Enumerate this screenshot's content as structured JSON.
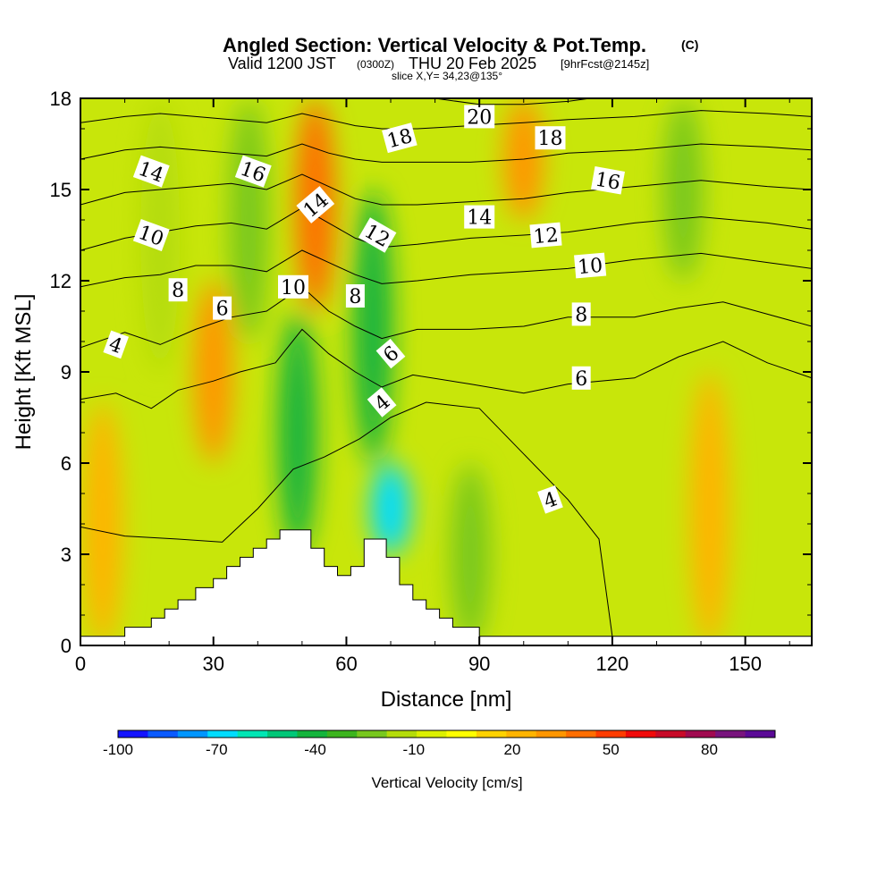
{
  "header": {
    "title": "Angled Section: Vertical Velocity & Pot.Temp.",
    "title_tag": "(C)",
    "valid_prefix": "Valid 1200 JST",
    "valid_utc": "(0300Z)",
    "valid_date": "THU 20 Feb 2025",
    "forecast": "[9hrFcst@2145z]",
    "slice": "slice X,Y= 34,23@135°"
  },
  "colorbar": {
    "label": "Vertical Velocity [cm/s]",
    "tick_labels": [
      "-100",
      "-70",
      "-40",
      "-10",
      "20",
      "50",
      "80"
    ],
    "colors": [
      "#1414ff",
      "#0a5aff",
      "#0096ff",
      "#00dcff",
      "#00e6b4",
      "#00c878",
      "#14b43c",
      "#3cb41e",
      "#78c81e",
      "#b4dc0a",
      "#dcf000",
      "#ffff00",
      "#ffd200",
      "#ffb400",
      "#ff9600",
      "#ff6e00",
      "#ff3c00",
      "#f00a0a",
      "#c80a28",
      "#a00a50",
      "#78147d",
      "#5a0a96"
    ],
    "range": [
      -100,
      100
    ]
  },
  "chart_data": {
    "type": "heatmap",
    "title": "Angled Section: Vertical Velocity & Pot.Temp.",
    "xlabel": "Distance [nm]",
    "ylabel": "Height [Kft MSL]",
    "xlim": [
      0,
      165
    ],
    "ylim": [
      0,
      18
    ],
    "x_ticks": [
      0,
      30,
      60,
      90,
      120,
      150
    ],
    "y_ticks": [
      0,
      3,
      6,
      9,
      12,
      15,
      18
    ],
    "filled_field": "Vertical Velocity [cm/s]",
    "vertical_velocity_features": [
      {
        "x": 5,
        "z_range": [
          0,
          8
        ],
        "value": 25
      },
      {
        "x": 18,
        "z_range": [
          9,
          18
        ],
        "value": -15
      },
      {
        "x": 30,
        "z_range": [
          6,
          12
        ],
        "value": 30
      },
      {
        "x": 38,
        "z_range": [
          10,
          18
        ],
        "value": -20
      },
      {
        "x": 49,
        "z_range": [
          3,
          11
        ],
        "value": -40
      },
      {
        "x": 53,
        "z_range": [
          11,
          18
        ],
        "value": 45
      },
      {
        "x": 70,
        "z_range": [
          3,
          6
        ],
        "value": -65
      },
      {
        "x": 66,
        "z_range": [
          6,
          15
        ],
        "value": -40
      },
      {
        "x": 88,
        "z_range": [
          0,
          6
        ],
        "value": -25
      },
      {
        "x": 100,
        "z_range": [
          14,
          18
        ],
        "value": 35
      },
      {
        "x": 142,
        "z_range": [
          0,
          9
        ],
        "value": 25
      },
      {
        "x": 136,
        "z_range": [
          12,
          18
        ],
        "value": -20
      }
    ],
    "terrain": [
      [
        0,
        0.3
      ],
      [
        10,
        0.3
      ],
      [
        10,
        0.6
      ],
      [
        16,
        0.6
      ],
      [
        16,
        0.9
      ],
      [
        19,
        0.9
      ],
      [
        19,
        1.2
      ],
      [
        22,
        1.2
      ],
      [
        22,
        1.5
      ],
      [
        26,
        1.5
      ],
      [
        26,
        1.9
      ],
      [
        30,
        1.9
      ],
      [
        30,
        2.2
      ],
      [
        33,
        2.2
      ],
      [
        33,
        2.6
      ],
      [
        36,
        2.6
      ],
      [
        36,
        2.9
      ],
      [
        39,
        2.9
      ],
      [
        39,
        3.2
      ],
      [
        42,
        3.2
      ],
      [
        42,
        3.5
      ],
      [
        45,
        3.5
      ],
      [
        45,
        3.8
      ],
      [
        52,
        3.8
      ],
      [
        52,
        3.2
      ],
      [
        55,
        3.2
      ],
      [
        55,
        2.6
      ],
      [
        58,
        2.6
      ],
      [
        58,
        2.3
      ],
      [
        61,
        2.3
      ],
      [
        61,
        2.6
      ],
      [
        64,
        2.6
      ],
      [
        64,
        3.5
      ],
      [
        69,
        3.5
      ],
      [
        69,
        2.9
      ],
      [
        72,
        2.9
      ],
      [
        72,
        2.0
      ],
      [
        75,
        2.0
      ],
      [
        75,
        1.5
      ],
      [
        78,
        1.5
      ],
      [
        78,
        1.2
      ],
      [
        81,
        1.2
      ],
      [
        81,
        0.9
      ],
      [
        84,
        0.9
      ],
      [
        84,
        0.6
      ],
      [
        90,
        0.6
      ],
      [
        90,
        0.3
      ],
      [
        165,
        0.3
      ],
      [
        165,
        0
      ],
      [
        0,
        0
      ]
    ],
    "theta_contours": [
      {
        "value": 4,
        "points": [
          [
            0,
            3.9
          ],
          [
            10,
            3.6
          ],
          [
            22,
            3.5
          ],
          [
            32,
            3.4
          ],
          [
            40,
            4.5
          ],
          [
            48,
            5.8
          ],
          [
            55,
            6.2
          ],
          [
            63,
            6.8
          ],
          [
            70,
            7.5
          ],
          [
            78,
            8.0
          ],
          [
            90,
            7.8
          ],
          [
            100,
            6.3
          ],
          [
            110,
            4.8
          ],
          [
            117,
            3.5
          ],
          [
            120,
            0.3
          ]
        ]
      },
      {
        "value": 6,
        "points": [
          [
            0,
            8.1
          ],
          [
            8,
            8.3
          ],
          [
            16,
            7.8
          ],
          [
            22,
            8.4
          ],
          [
            30,
            8.7
          ],
          [
            36,
            9.0
          ],
          [
            44,
            9.3
          ],
          [
            50,
            10.4
          ],
          [
            56,
            9.6
          ],
          [
            62,
            9.0
          ],
          [
            68,
            8.5
          ],
          [
            75,
            8.9
          ],
          [
            88,
            8.6
          ],
          [
            100,
            8.3
          ],
          [
            110,
            8.6
          ],
          [
            125,
            8.8
          ],
          [
            135,
            9.5
          ],
          [
            145,
            10.0
          ],
          [
            155,
            9.3
          ],
          [
            165,
            8.8
          ]
        ]
      },
      {
        "value": 8,
        "points": [
          [
            0,
            9.8
          ],
          [
            10,
            10.3
          ],
          [
            18,
            9.9
          ],
          [
            26,
            10.4
          ],
          [
            34,
            10.8
          ],
          [
            42,
            11.0
          ],
          [
            50,
            11.8
          ],
          [
            56,
            11.0
          ],
          [
            62,
            10.5
          ],
          [
            68,
            10.1
          ],
          [
            76,
            10.4
          ],
          [
            88,
            10.4
          ],
          [
            100,
            10.5
          ],
          [
            110,
            10.8
          ],
          [
            125,
            10.8
          ],
          [
            135,
            11.1
          ],
          [
            145,
            11.3
          ],
          [
            155,
            10.9
          ],
          [
            165,
            10.5
          ]
        ]
      },
      {
        "value": 10,
        "points": [
          [
            0,
            11.8
          ],
          [
            10,
            12.1
          ],
          [
            18,
            12.2
          ],
          [
            26,
            12.5
          ],
          [
            34,
            12.5
          ],
          [
            42,
            12.3
          ],
          [
            50,
            13.0
          ],
          [
            56,
            12.6
          ],
          [
            62,
            12.2
          ],
          [
            68,
            11.9
          ],
          [
            76,
            12.0
          ],
          [
            88,
            12.2
          ],
          [
            100,
            12.3
          ],
          [
            110,
            12.4
          ],
          [
            125,
            12.7
          ],
          [
            140,
            12.9
          ],
          [
            155,
            12.6
          ],
          [
            165,
            12.4
          ]
        ]
      },
      {
        "value": 12,
        "points": [
          [
            0,
            13.0
          ],
          [
            10,
            13.4
          ],
          [
            18,
            13.6
          ],
          [
            26,
            13.8
          ],
          [
            34,
            13.9
          ],
          [
            42,
            13.7
          ],
          [
            50,
            14.4
          ],
          [
            56,
            13.9
          ],
          [
            62,
            13.4
          ],
          [
            68,
            13.1
          ],
          [
            76,
            13.2
          ],
          [
            88,
            13.4
          ],
          [
            100,
            13.5
          ],
          [
            110,
            13.6
          ],
          [
            125,
            13.9
          ],
          [
            140,
            14.1
          ],
          [
            155,
            13.9
          ],
          [
            165,
            13.7
          ]
        ]
      },
      {
        "value": 14,
        "points": [
          [
            0,
            14.5
          ],
          [
            10,
            14.9
          ],
          [
            18,
            15.0
          ],
          [
            26,
            15.1
          ],
          [
            34,
            15.2
          ],
          [
            42,
            15.0
          ],
          [
            50,
            15.5
          ],
          [
            56,
            15.1
          ],
          [
            62,
            14.7
          ],
          [
            68,
            14.5
          ],
          [
            76,
            14.5
          ],
          [
            88,
            14.6
          ],
          [
            100,
            14.7
          ],
          [
            110,
            14.9
          ],
          [
            125,
            15.1
          ],
          [
            140,
            15.3
          ],
          [
            155,
            15.1
          ],
          [
            165,
            15.0
          ]
        ]
      },
      {
        "value": 16,
        "points": [
          [
            0,
            16.0
          ],
          [
            10,
            16.3
          ],
          [
            18,
            16.4
          ],
          [
            26,
            16.3
          ],
          [
            34,
            16.2
          ],
          [
            42,
            16.1
          ],
          [
            50,
            16.5
          ],
          [
            56,
            16.2
          ],
          [
            62,
            16.0
          ],
          [
            68,
            15.9
          ],
          [
            76,
            15.9
          ],
          [
            88,
            15.9
          ],
          [
            100,
            16.0
          ],
          [
            110,
            16.2
          ],
          [
            125,
            16.3
          ],
          [
            140,
            16.5
          ],
          [
            155,
            16.4
          ],
          [
            165,
            16.3
          ]
        ]
      },
      {
        "value": 18,
        "points": [
          [
            0,
            17.2
          ],
          [
            10,
            17.4
          ],
          [
            18,
            17.5
          ],
          [
            26,
            17.4
          ],
          [
            34,
            17.3
          ],
          [
            42,
            17.2
          ],
          [
            50,
            17.5
          ],
          [
            56,
            17.3
          ],
          [
            62,
            17.1
          ],
          [
            68,
            17.0
          ],
          [
            76,
            17.0
          ],
          [
            88,
            17.1
          ],
          [
            100,
            17.2
          ],
          [
            110,
            17.3
          ],
          [
            125,
            17.4
          ],
          [
            140,
            17.6
          ],
          [
            155,
            17.5
          ],
          [
            165,
            17.4
          ]
        ]
      },
      {
        "value": 20,
        "points": [
          [
            80,
            18.0
          ],
          [
            90,
            17.8
          ],
          [
            100,
            17.8
          ],
          [
            110,
            17.9
          ],
          [
            115,
            18.0
          ]
        ]
      }
    ],
    "contour_labels": [
      {
        "text": "14",
        "x": 16,
        "y": 15.6,
        "angle": 20
      },
      {
        "text": "16",
        "x": 39,
        "y": 15.6,
        "angle": 20
      },
      {
        "text": "10",
        "x": 16,
        "y": 13.5,
        "angle": 20
      },
      {
        "text": "14",
        "x": 53,
        "y": 14.5,
        "angle": -40
      },
      {
        "text": "18",
        "x": 72,
        "y": 16.7,
        "angle": -15
      },
      {
        "text": "20",
        "x": 90,
        "y": 17.4,
        "angle": 0
      },
      {
        "text": "18",
        "x": 106,
        "y": 16.7,
        "angle": 0
      },
      {
        "text": "16",
        "x": 119,
        "y": 15.3,
        "angle": 10
      },
      {
        "text": "12",
        "x": 67,
        "y": 13.5,
        "angle": 30
      },
      {
        "text": "14",
        "x": 90,
        "y": 14.1,
        "angle": 0
      },
      {
        "text": "12",
        "x": 105,
        "y": 13.5,
        "angle": -5
      },
      {
        "text": "10",
        "x": 115,
        "y": 12.5,
        "angle": -5
      },
      {
        "text": "8",
        "x": 22,
        "y": 11.7,
        "angle": 0
      },
      {
        "text": "10",
        "x": 48,
        "y": 11.8,
        "angle": 0
      },
      {
        "text": "8",
        "x": 62,
        "y": 11.5,
        "angle": 0
      },
      {
        "text": "6",
        "x": 32,
        "y": 11.1,
        "angle": 0
      },
      {
        "text": "8",
        "x": 113,
        "y": 10.9,
        "angle": 0
      },
      {
        "text": "4",
        "x": 8,
        "y": 9.9,
        "angle": 20
      },
      {
        "text": "6",
        "x": 70,
        "y": 9.6,
        "angle": -40
      },
      {
        "text": "6",
        "x": 113,
        "y": 8.8,
        "angle": 0
      },
      {
        "text": "4",
        "x": 68,
        "y": 8.0,
        "angle": -40
      },
      {
        "text": "4",
        "x": 106,
        "y": 4.8,
        "angle": -20
      }
    ]
  }
}
